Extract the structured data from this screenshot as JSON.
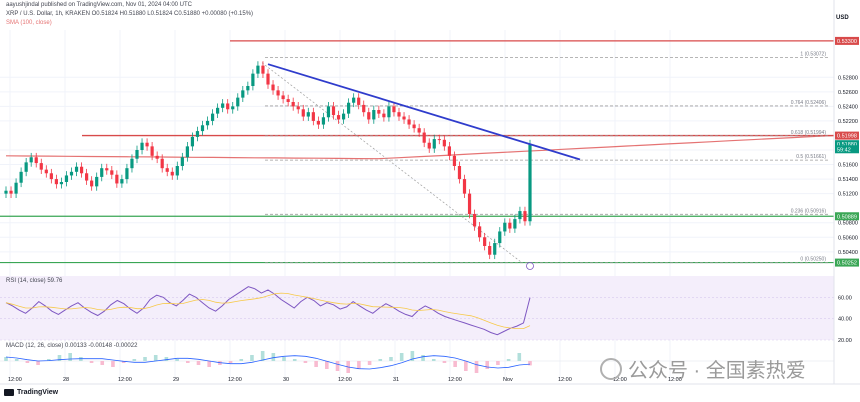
{
  "header": {
    "published": "aayushjindal published on TradingView.com, Nov 01, 2024 04:00 UTC",
    "symbol_line": "XRP / U.S. Dollar, 1h, KRAKEN O0.51824 H0.51880 L0.51824 C0.51880 +0.00080 (+0.15%)",
    "sma_label": "SMA (100, close)",
    "currency": "USD"
  },
  "colors": {
    "up": "#089981",
    "down": "#f23645",
    "sma": "#e57373",
    "trendline": "#2f3ccc",
    "resistance": "#d84a4a",
    "support": "#3aa655",
    "rsi": "#7e57c2",
    "macd_line": "#2962ff",
    "signal_line": "#ff9800",
    "fib_dash": "#9e9e9e"
  },
  "chart_data": [
    {
      "type": "candlestick",
      "title": "XRP / U.S. Dollar, 1h, KRAKEN",
      "ylabel": "USD",
      "ylim": [
        0.5015,
        0.5345
      ],
      "yticks": [
        0.528,
        0.526,
        0.524,
        0.522,
        0.518,
        0.516,
        0.514,
        0.512,
        0.508,
        0.506,
        0.504
      ],
      "price_labels": [
        {
          "label": "0.53300",
          "value": 0.533,
          "color": "#d84a4a"
        },
        {
          "label": "0.51998",
          "value": 0.51998,
          "color": "#d84a4a"
        },
        {
          "label": "0.51880",
          "value": 0.5188,
          "color": "#089981"
        },
        {
          "label": "59:42",
          "value": 0.5181,
          "color": "#089981"
        },
        {
          "label": "0.50889",
          "value": 0.50889,
          "color": "#3aa655"
        },
        {
          "label": "0.50252",
          "value": 0.50252,
          "color": "#3aa655"
        }
      ],
      "xticks": [
        "12:00",
        "28",
        "12:00",
        "29",
        "12:00",
        "30",
        "12:00",
        "31",
        "12:00",
        "Nov",
        "12:00",
        "12:00",
        "12:00"
      ],
      "ohlc_close": [
        0.5124,
        0.512,
        0.5135,
        0.515,
        0.5163,
        0.517,
        0.5162,
        0.5153,
        0.5148,
        0.514,
        0.5133,
        0.5136,
        0.5145,
        0.515,
        0.5157,
        0.5148,
        0.5138,
        0.513,
        0.5143,
        0.5155,
        0.5152,
        0.5146,
        0.5134,
        0.514,
        0.5155,
        0.5168,
        0.518,
        0.519,
        0.5185,
        0.5172,
        0.5168,
        0.5155,
        0.515,
        0.5145,
        0.5158,
        0.517,
        0.5185,
        0.5198,
        0.5206,
        0.5214,
        0.522,
        0.523,
        0.5238,
        0.5244,
        0.5236,
        0.524,
        0.5252,
        0.5262,
        0.5268,
        0.5285,
        0.5296,
        0.5285,
        0.527,
        0.5262,
        0.5255,
        0.525,
        0.5246,
        0.524,
        0.5236,
        0.5226,
        0.5232,
        0.522,
        0.5215,
        0.5225,
        0.524,
        0.5228,
        0.5222,
        0.523,
        0.5245,
        0.5252,
        0.5242,
        0.5232,
        0.5222,
        0.5235,
        0.523,
        0.5225,
        0.524,
        0.5232,
        0.5226,
        0.5222,
        0.5215,
        0.521,
        0.5204,
        0.519,
        0.5182,
        0.5195,
        0.5194,
        0.5185,
        0.5172,
        0.5158,
        0.514,
        0.512,
        0.5092,
        0.5075,
        0.506,
        0.5048,
        0.5036,
        0.5052,
        0.5068,
        0.508,
        0.5072,
        0.5085,
        0.5096,
        0.5082,
        0.5188
      ],
      "sma100": {
        "start": 0.5172,
        "low": 0.5168,
        "end": 0.52
      },
      "fib_levels": [
        {
          "label": "1 (0.53072)",
          "value": 0.53072
        },
        {
          "label": "0.764 (0.52406)",
          "value": 0.52406
        },
        {
          "label": "0.618 (0.51994)",
          "value": 0.51994
        },
        {
          "label": "0.5 (0.51661)",
          "value": 0.51661
        },
        {
          "label": "0.236 (0.50916)",
          "value": 0.50916
        },
        {
          "label": "0 (0.50250)",
          "value": 0.5025
        }
      ],
      "annotations": {
        "trendline": {
          "from": 0.5298,
          "to": 0.5167
        },
        "horizontal_resistance": 0.51998,
        "horizontal_support": [
          0.50889,
          0.50252
        ]
      }
    },
    {
      "type": "line",
      "title": "RSI (14, close) 59.76",
      "ylim": [
        20,
        80
      ],
      "yticks": [
        60,
        40,
        20
      ],
      "band": [
        30,
        70
      ],
      "values": [
        55,
        52,
        48,
        45,
        50,
        56,
        52,
        47,
        44,
        48,
        52,
        55,
        50,
        46,
        43,
        47,
        53,
        57,
        54,
        49,
        45,
        50,
        58,
        62,
        60,
        55,
        52,
        57,
        63,
        60,
        55,
        50,
        47,
        52,
        58,
        62,
        66,
        70,
        68,
        64,
        67,
        63,
        58,
        54,
        50,
        56,
        60,
        57,
        52,
        55,
        53,
        49,
        51,
        56,
        52,
        48,
        45,
        50,
        54,
        51,
        47,
        44,
        42,
        48,
        52,
        49,
        45,
        42,
        40,
        38,
        36,
        34,
        32,
        30,
        27,
        25,
        28,
        31,
        33,
        36,
        59.76
      ]
    },
    {
      "type": "bar",
      "title": "MACD (12, 26, close) 0.00133 -0.00148 -0.00022",
      "series": [
        {
          "values": [
            0.0002,
            0.0001,
            -0.0001,
            -0.0002,
            0.0001,
            0.0003,
            0.0004,
            0.0002,
            -0.0001,
            -0.0002,
            -0.0003,
            -0.0001,
            0.0001,
            0.0002,
            0.0003,
            0.0002,
            0.0001,
            -0.0001,
            -0.0002,
            -0.0003,
            -0.0002,
            -0.0001,
            0.0001,
            0.0003,
            0.0005,
            0.0004,
            0.0002,
            0.0001,
            -0.0001,
            -0.0003,
            -0.0004,
            -0.0005,
            -0.0006,
            -0.0004,
            -0.0002,
            0.0001,
            0.0002,
            0.0004,
            0.0005,
            0.0003,
            0.0001,
            -0.0001,
            -0.0003,
            -0.0005,
            -0.0006,
            -0.0004,
            -0.0002,
            0.0001,
            0.0004,
            -0.00022
          ]
        }
      ]
    }
  ],
  "watermark": "公众号 · 全国素热爱",
  "branding": "TradingView"
}
